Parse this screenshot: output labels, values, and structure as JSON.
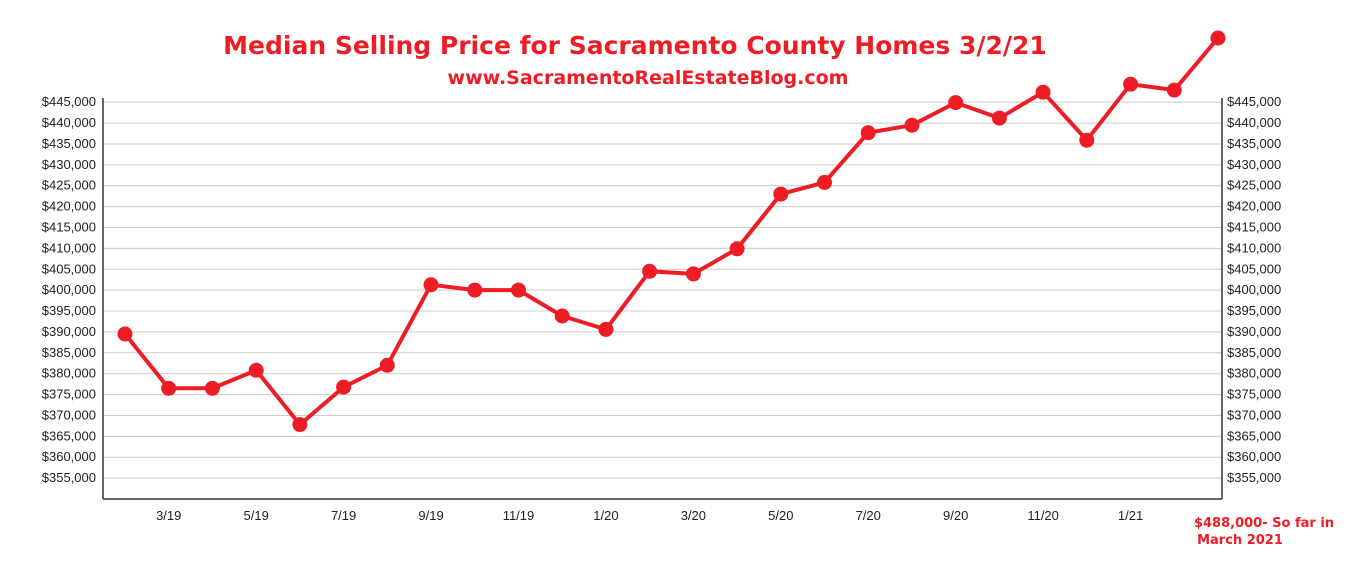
{
  "chart_data": {
    "type": "line",
    "title": "Median Selling Price for Sacramento County Homes 3/2/21",
    "subtitle": "www.SacramentoRealEstateBlog.com",
    "ylim": [
      350000,
      446000
    ],
    "y_ticks": [
      "$355,000",
      "$360,000",
      "$365,000",
      "$370,000",
      "$375,000",
      "$380,000",
      "$385,000",
      "$390,000",
      "$395,000",
      "$400,000",
      "$405,000",
      "$410,000",
      "$415,000",
      "$420,000",
      "$425,000",
      "$430,000",
      "$435,000",
      "$440,000",
      "$445,000"
    ],
    "y_tick_values": [
      355000,
      360000,
      365000,
      370000,
      375000,
      380000,
      385000,
      390000,
      395000,
      400000,
      405000,
      410000,
      415000,
      420000,
      425000,
      430000,
      435000,
      440000,
      445000
    ],
    "x_tick_labels": [
      {
        "label": "3/19",
        "index": 1
      },
      {
        "label": "5/19",
        "index": 3
      },
      {
        "label": "7/19",
        "index": 5
      },
      {
        "label": "9/19",
        "index": 7
      },
      {
        "label": "11/19",
        "index": 9
      },
      {
        "label": "1/20",
        "index": 11
      },
      {
        "label": "3/20",
        "index": 13
      },
      {
        "label": "5/20",
        "index": 15
      },
      {
        "label": "7/20",
        "index": 17
      },
      {
        "label": "9/20",
        "index": 19
      },
      {
        "label": "11/20",
        "index": 21
      },
      {
        "label": "1/21",
        "index": 23
      }
    ],
    "grid": true,
    "series": [
      {
        "color": "#ee1c25",
        "values": [
          389500,
          376500,
          376500,
          380800,
          367800,
          376800,
          382000,
          401300,
          400000,
          400000,
          393800,
          390600,
          404500,
          403900,
          409900,
          423000,
          425800,
          437700,
          439500,
          444900,
          441200,
          447400,
          435900,
          449300,
          447900,
          455700
        ],
        "off_scale_last_point": true
      }
    ],
    "annotation": {
      "line1": "$488,000- So far in",
      "line2": "March 2021"
    }
  }
}
